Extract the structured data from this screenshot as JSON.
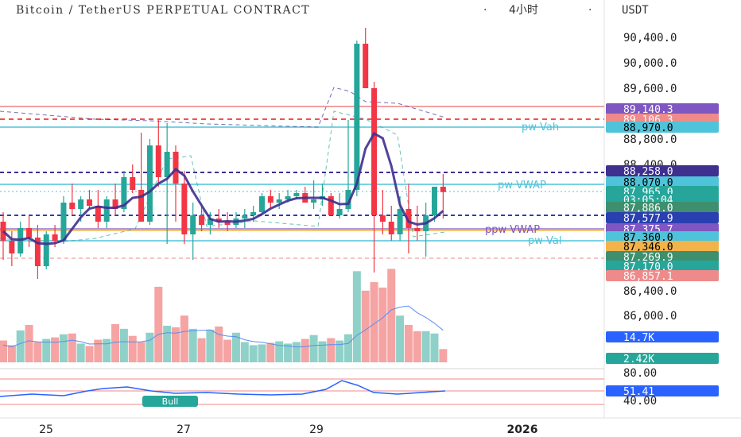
{
  "header": {
    "title": "Bitcoin / TetherUS PERPETUAL CONTRACT",
    "sep1": "·",
    "interval": "4小时",
    "sep2": "·",
    "currency": "USDT"
  },
  "axis": {
    "price_ticks": [
      "90,400.0",
      "90,000.0",
      "89,600.0",
      "88,800.0",
      "88,400.0",
      "86,400.0",
      "86,000.0",
      "80.00",
      "40.00"
    ],
    "date_ticks": [
      "25",
      "27",
      "29",
      "2026"
    ]
  },
  "tags": [
    {
      "text": "89,140.3",
      "bg": "#7e57c2",
      "fg": "#ffffff"
    },
    {
      "text": "89,106.3",
      "bg": "#ef8a8a",
      "fg": "#ffffff"
    },
    {
      "text": "88,970.0",
      "bg": "#4fc3d9",
      "fg": "#000000"
    },
    {
      "text": "88,258.0",
      "bg": "#3f2f8f",
      "fg": "#ffffff"
    },
    {
      "text": "88,070.0",
      "bg": "#4fc3d9",
      "fg": "#000000"
    },
    {
      "text": "87,965.0",
      "bg": "#26a69a",
      "fg": "#ffffff"
    },
    {
      "text": "03:05:04",
      "bg": "#26a69a",
      "fg": "#ffffff"
    },
    {
      "text": "87,886.0",
      "bg": "#3d8f6e",
      "fg": "#ffffff"
    },
    {
      "text": "87,577.9",
      "bg": "#2a3fb0",
      "fg": "#ffffff"
    },
    {
      "text": "87,375.7",
      "bg": "#7e57c2",
      "fg": "#ffffff"
    },
    {
      "text": "87,360.0",
      "bg": "#4fc3d9",
      "fg": "#000000"
    },
    {
      "text": "87,346.0",
      "bg": "#f2b34a",
      "fg": "#000000"
    },
    {
      "text": "87,269.9",
      "bg": "#3d8f6e",
      "fg": "#ffffff"
    },
    {
      "text": "87,170.0",
      "bg": "#26a69a",
      "fg": "#ffffff"
    },
    {
      "text": "86,857.1",
      "bg": "#ef8a8a",
      "fg": "#ffffff"
    },
    {
      "text": "14.7K",
      "bg": "#2962ff",
      "fg": "#ffffff"
    },
    {
      "text": "2.42K",
      "bg": "#26a69a",
      "fg": "#ffffff"
    },
    {
      "text": "51.41",
      "bg": "#2962ff",
      "fg": "#ffffff"
    }
  ],
  "labels": {
    "pw_vah": "pw Vah",
    "pw_vwap": "pw VWAP",
    "ppw_vwap": "ppw VWAP",
    "pw_val": "pw Val",
    "bull": "Bull"
  },
  "colors": {
    "up": "#26a69a",
    "down": "#f23645",
    "vol_up": "#8fd1c8",
    "vol_down": "#f5a3a3",
    "ma": "#3f2f8f",
    "vwap_line": "#2a3fb0",
    "cyan": "#4fc3d9",
    "red_line": "#ef8a8a",
    "rsi": "#2962ff"
  },
  "chart_data": {
    "type": "candlestick",
    "series": [
      {
        "values": [
          [
            87500,
            87650,
            86900,
            87200
          ],
          [
            87200,
            87350,
            86800,
            87000
          ],
          [
            87000,
            87500,
            86950,
            87400
          ],
          [
            87400,
            87600,
            87100,
            87250
          ],
          [
            87250,
            87450,
            86600,
            86800
          ],
          [
            86800,
            87350,
            86750,
            87300
          ],
          [
            87300,
            87450,
            87100,
            87200
          ],
          [
            87200,
            87900,
            87150,
            87800
          ],
          [
            87800,
            88100,
            87600,
            87700
          ],
          [
            87700,
            87900,
            87500,
            87850
          ],
          [
            87850,
            88000,
            87700,
            87750
          ],
          [
            87750,
            88000,
            87400,
            87500
          ],
          [
            87500,
            87900,
            87400,
            87850
          ],
          [
            87850,
            88100,
            87600,
            87700
          ],
          [
            87700,
            88300,
            87650,
            88200
          ],
          [
            88200,
            88400,
            87950,
            88000
          ],
          [
            88000,
            88900,
            87700,
            87500
          ],
          [
            87500,
            88800,
            87450,
            88700
          ],
          [
            88700,
            89100,
            88050,
            88200
          ],
          [
            88200,
            89050,
            87150,
            88600
          ],
          [
            88600,
            88700,
            87500,
            88100
          ],
          [
            88100,
            88300,
            87150,
            87300
          ],
          [
            87300,
            87800,
            86900,
            87600
          ],
          [
            87600,
            87750,
            87350,
            87450
          ],
          [
            87450,
            87650,
            87300,
            87550
          ],
          [
            87550,
            87700,
            87400,
            87500
          ],
          [
            87500,
            87650,
            87350,
            87450
          ],
          [
            87450,
            87650,
            87400,
            87550
          ],
          [
            87550,
            87700,
            87400,
            87600
          ],
          [
            87600,
            87750,
            87500,
            87650
          ],
          [
            87650,
            87950,
            87600,
            87900
          ],
          [
            87900,
            88000,
            87700,
            87800
          ],
          [
            87800,
            87950,
            87700,
            87850
          ],
          [
            87850,
            88000,
            87800,
            87900
          ],
          [
            87900,
            88000,
            87850,
            87950
          ],
          [
            87950,
            88050,
            87800,
            87800
          ],
          [
            87800,
            88150,
            87700,
            87850
          ],
          [
            87850,
            88100,
            87750,
            87900
          ],
          [
            87900,
            87950,
            87750,
            87600
          ],
          [
            87600,
            87950,
            87550,
            87700
          ],
          [
            87700,
            89100,
            87650,
            88000
          ],
          [
            88000,
            90350,
            87900,
            90300
          ],
          [
            90300,
            90550,
            89700,
            89600
          ],
          [
            89600,
            89700,
            86700,
            87600
          ],
          [
            87600,
            88000,
            87300,
            87500
          ],
          [
            87500,
            87750,
            87200,
            87300
          ],
          [
            87300,
            87900,
            87200,
            87700
          ],
          [
            87700,
            88100,
            87000,
            87400
          ],
          [
            87400,
            87750,
            87200,
            87350
          ],
          [
            87350,
            87800,
            86950,
            87600
          ],
          [
            87600,
            88050,
            87500,
            88050
          ],
          [
            88050,
            88250,
            87550,
            87965
          ]
        ]
      },
      {
        "name": "Volume",
        "values": [
          2800,
          2200,
          4100,
          4800,
          2600,
          3000,
          3200,
          3600,
          3700,
          2400,
          2100,
          2900,
          3000,
          4900,
          4300,
          3400,
          2600,
          3800,
          9700,
          4700,
          4500,
          6000,
          4300,
          3100,
          4200,
          4600,
          2900,
          3800,
          2600,
          2200,
          2300,
          2500,
          2700,
          2400,
          2600,
          3000,
          3500,
          2700,
          3100,
          2800,
          3600,
          11700,
          9200,
          10300,
          9600,
          12000,
          6000,
          4800,
          4000,
          4000,
          3700,
          1700
        ]
      }
    ],
    "rsi": {
      "overbought": 80,
      "oversold": 40,
      "last": 51.41
    },
    "volume_ma_last": "14.7K"
  }
}
